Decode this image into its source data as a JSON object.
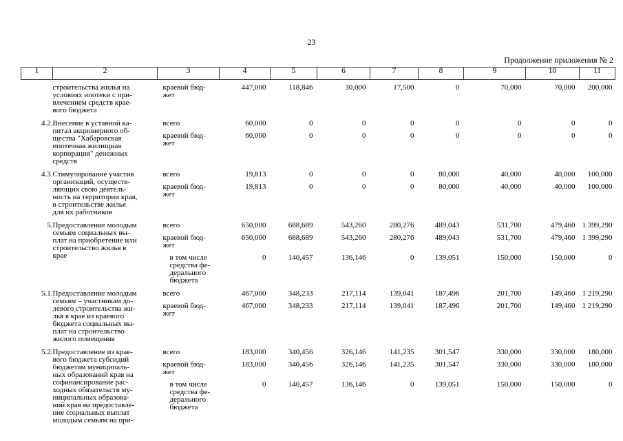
{
  "page": {
    "number": "23",
    "continuation": "Продолжение приложения № 2"
  },
  "table": {
    "column_numbers": [
      "1",
      "2",
      "3",
      "4",
      "5",
      "6",
      "7",
      "8",
      "9",
      "10",
      "11"
    ],
    "groups": [
      {
        "num": "",
        "desc": "строительства жилья на\nусловиях ипотеки с при-\nвлечением средств крае-\nвого бюджета",
        "lines": [
          {
            "label": "краевой бюд-\nжет",
            "indent": false,
            "values": [
              "447,000",
              "118,846",
              "30,000",
              "17,500",
              "0",
              "70,000",
              "70,000",
              "200,000"
            ]
          }
        ]
      },
      {
        "num": "4.2.",
        "desc": "Внесение в уставной ка-\nпитал акционерного об-\nщества \"Хабаровская\nипотечная жилищная\nкорпорация\" денежных\nсредств",
        "lines": [
          {
            "label": "всего",
            "indent": false,
            "values": [
              "60,000",
              "0",
              "0",
              "0",
              "0",
              "0",
              "0",
              "0"
            ]
          },
          {
            "label": "краевой бюд-\nжет",
            "indent": false,
            "values": [
              "60,000",
              "0",
              "0",
              "0",
              "0",
              "0",
              "0",
              "0"
            ]
          }
        ]
      },
      {
        "num": "4.3.",
        "desc": "Стимулирование участия\nорганизаций, осуществ-\nляющих свою деятель-\nность на территории края,\nв строительстве жилья\nдля их работников",
        "lines": [
          {
            "label": "всего",
            "indent": false,
            "values": [
              "19,813",
              "0",
              "0",
              "0",
              "80,000",
              "40,000",
              "40,000",
              "100,000"
            ]
          },
          {
            "label": "краевой бюд-\nжет",
            "indent": false,
            "values": [
              "19,813",
              "0",
              "0",
              "0",
              "80,000",
              "40,000",
              "40,000",
              "100,000"
            ]
          }
        ]
      },
      {
        "num": "5.",
        "desc": "Предоставление молодым\nсемьям социальных вы-\nплат на приобретение или\nстроительство жилья в\nкрае",
        "lines": [
          {
            "label": "всего",
            "indent": false,
            "values": [
              "650,000",
              "688,689",
              "543,260",
              "280,276",
              "489,043",
              "531,700",
              "479,460",
              "1 399,290"
            ]
          },
          {
            "label": "краевой бюд-\nжет",
            "indent": false,
            "values": [
              "650,000",
              "688,689",
              "543,260",
              "280,276",
              "489,043",
              "531,700",
              "479,460",
              "1 399,290"
            ]
          },
          {
            "label": "в том числе\nсредства фе-\nдерального\nбюджета",
            "indent": true,
            "values": [
              "0",
              "140,457",
              "136,146",
              "0",
              "139,051",
              "150,000",
              "150,000",
              "0"
            ]
          }
        ]
      },
      {
        "num": "5.1.",
        "desc": "Предоставление молодым\nсемьям – участникам до-\nлевого строительства жи-\nлья в крае из краевого\nбюджета социальных вы-\nплат на строительство\nжилого помещения",
        "lines": [
          {
            "label": "всего",
            "indent": false,
            "values": [
              "467,000",
              "348,233",
              "217,114",
              "139,041",
              "187,496",
              "201,700",
              "149,460",
              "1 219,290"
            ]
          },
          {
            "label": "краевой бюд-\nжет",
            "indent": false,
            "values": [
              "467,000",
              "348,233",
              "217,114",
              "139,041",
              "187,496",
              "201,700",
              "149,460",
              "1 219,290"
            ]
          }
        ]
      },
      {
        "num": "5.2.",
        "desc": "Предоставление из крае-\nвого бюджета субсидий\nбюджетам муниципаль-\nных образований края на\nсофинансирование рас-\nходных обязательств му-\nниципальных образова-\nний края на предоставле-\nние социальных выплат\nмолодым семьям на при-",
        "lines": [
          {
            "label": "всего",
            "indent": false,
            "values": [
              "183,000",
              "340,456",
              "326,146",
              "141,235",
              "301,547",
              "330,000",
              "330,000",
              "180,000"
            ]
          },
          {
            "label": "краевой бюд-\nжет",
            "indent": false,
            "values": [
              "183,000",
              "340,456",
              "326,146",
              "141,235",
              "301,547",
              "330,000",
              "330,000",
              "180,000"
            ]
          },
          {
            "label": "в том числе\nсредства фе-\nдерального\nбюджета",
            "indent": true,
            "values": [
              "0",
              "140,457",
              "136,146",
              "0",
              "139,051",
              "150,000",
              "150,000",
              "0"
            ]
          }
        ]
      }
    ]
  }
}
